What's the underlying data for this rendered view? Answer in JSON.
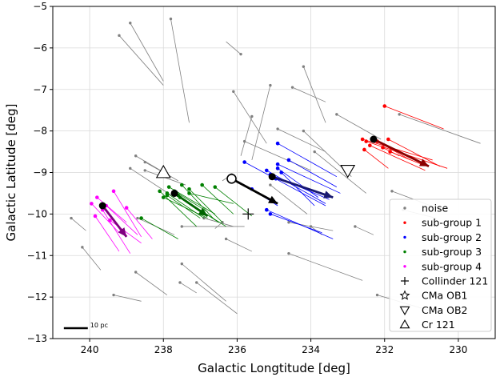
{
  "chart_data": {
    "type": "scatter",
    "xlabel": "Galactic Longtitude [deg]",
    "ylabel": "Galactic Latitude [deg]",
    "xlim": [
      241,
      229
    ],
    "ylim": [
      -13,
      -5
    ],
    "x_inverted": true,
    "grid": true,
    "x_ticks": [
      240,
      238,
      236,
      234,
      232,
      230
    ],
    "y_ticks": [
      -5,
      -6,
      -7,
      -8,
      -9,
      -10,
      -11,
      -12,
      -13
    ],
    "legend_position": "lower-right",
    "scale_bar": {
      "label": "10 pc",
      "x1": 240.7,
      "x2": 240.05,
      "y": -12.75
    },
    "colors": {
      "noise": "#808080",
      "sub-group 1": "#ff0000",
      "sub-group 2": "#0000ff",
      "sub-group 3": "#008000",
      "sub-group 4": "#ff00ff"
    },
    "series": [
      {
        "name": "noise",
        "color": "#808080",
        "stars": [
          [
            238.9,
            -5.4,
            238.0,
            -6.8
          ],
          [
            237.8,
            -5.3,
            237.3,
            -7.8
          ],
          [
            239.2,
            -5.7,
            238.0,
            -6.9
          ],
          [
            235.9,
            -6.15,
            236.3,
            -5.85
          ],
          [
            236.1,
            -7.05,
            235.2,
            -8.3
          ],
          [
            235.1,
            -6.9,
            235.6,
            -8.7
          ],
          [
            234.5,
            -6.95,
            233.6,
            -7.3
          ],
          [
            234.2,
            -6.45,
            233.6,
            -7.8
          ],
          [
            235.8,
            -8.25,
            234.0,
            -8.95
          ],
          [
            235.6,
            -7.65,
            235.9,
            -8.6
          ],
          [
            234.9,
            -7.95,
            233.6,
            -8.5
          ],
          [
            234.2,
            -8.0,
            232.9,
            -9.1
          ],
          [
            233.9,
            -8.5,
            232.5,
            -9.5
          ],
          [
            233.3,
            -7.6,
            232.1,
            -8.2
          ],
          [
            231.6,
            -7.6,
            229.4,
            -8.3
          ],
          [
            238.75,
            -8.6,
            237.6,
            -9.2
          ],
          [
            238.9,
            -8.9,
            237.7,
            -9.6
          ],
          [
            238.5,
            -8.75,
            237.8,
            -9.1
          ],
          [
            238.5,
            -8.95,
            237.4,
            -9.3
          ],
          [
            236.15,
            -9.05,
            236.4,
            -9.2
          ],
          [
            235.1,
            -9.3,
            234.1,
            -10.0
          ],
          [
            238.7,
            -10.1,
            237.7,
            -10.5
          ],
          [
            240.5,
            -10.1,
            240.1,
            -10.4
          ],
          [
            240.2,
            -10.8,
            239.7,
            -11.35
          ],
          [
            236.9,
            -10.1,
            236.1,
            -10.3
          ],
          [
            234.6,
            -10.2,
            233.4,
            -10.4
          ],
          [
            234.0,
            -10.3,
            233.7,
            -10.5
          ],
          [
            232.8,
            -10.3,
            232.3,
            -10.5
          ],
          [
            231.8,
            -9.45,
            230.3,
            -9.95
          ],
          [
            231.5,
            -9.9,
            230.6,
            -10.1
          ],
          [
            239.35,
            -11.95,
            238.6,
            -12.1
          ],
          [
            238.75,
            -11.4,
            237.9,
            -11.95
          ],
          [
            237.5,
            -11.2,
            236.3,
            -12.1
          ],
          [
            237.55,
            -11.65,
            237.1,
            -11.9
          ],
          [
            237.1,
            -11.65,
            236.0,
            -12.4
          ],
          [
            234.6,
            -10.95,
            232.6,
            -11.6
          ],
          [
            232.2,
            -11.95,
            230.5,
            -12.4
          ],
          [
            236.4,
            -10.2,
            236.6,
            -10.35
          ],
          [
            237.5,
            -10.3,
            235.8,
            -10.3
          ],
          [
            236.3,
            -10.6,
            235.6,
            -10.9
          ]
        ]
      },
      {
        "name": "sub-group 1",
        "color": "#ff0000",
        "stars": [
          [
            232.0,
            -7.4,
            230.4,
            -7.95
          ],
          [
            232.6,
            -8.2,
            230.7,
            -8.7
          ],
          [
            232.5,
            -8.25,
            230.3,
            -8.9
          ],
          [
            232.4,
            -8.35,
            230.9,
            -8.95
          ],
          [
            232.55,
            -8.45,
            231.9,
            -8.9
          ],
          [
            232.2,
            -8.25,
            231.3,
            -8.7
          ],
          [
            231.85,
            -8.5,
            231.0,
            -8.8
          ],
          [
            231.9,
            -8.2,
            230.5,
            -8.85
          ],
          [
            232.05,
            -8.4,
            231.6,
            -8.6
          ]
        ]
      },
      {
        "name": "sub-group 2",
        "color": "#0000ff",
        "stars": [
          [
            235.8,
            -8.75,
            233.6,
            -9.8
          ],
          [
            234.9,
            -8.3,
            233.3,
            -9.1
          ],
          [
            234.6,
            -8.7,
            233.3,
            -9.35
          ],
          [
            234.9,
            -8.8,
            233.2,
            -9.5
          ],
          [
            234.9,
            -8.9,
            233.8,
            -9.6
          ],
          [
            235.2,
            -8.95,
            233.6,
            -9.75
          ],
          [
            235.1,
            -9.05,
            233.5,
            -9.65
          ],
          [
            234.95,
            -9.15,
            233.4,
            -9.6
          ],
          [
            234.8,
            -9.0,
            233.9,
            -9.8
          ],
          [
            235.2,
            -9.9,
            233.4,
            -10.6
          ],
          [
            235.1,
            -10.0,
            233.7,
            -10.45
          ],
          [
            235.6,
            -9.4,
            234.9,
            -9.8
          ]
        ]
      },
      {
        "name": "sub-group 3",
        "color": "#008000",
        "stars": [
          [
            238.1,
            -9.45,
            237.1,
            -10.3
          ],
          [
            237.9,
            -9.5,
            236.9,
            -10.1
          ],
          [
            237.85,
            -9.35,
            236.6,
            -10.0
          ],
          [
            237.5,
            -9.3,
            236.6,
            -10.15
          ],
          [
            237.7,
            -9.45,
            236.8,
            -9.95
          ],
          [
            237.6,
            -9.55,
            236.5,
            -10.2
          ],
          [
            237.3,
            -9.4,
            236.4,
            -10.2
          ],
          [
            236.95,
            -9.3,
            236.1,
            -10.0
          ],
          [
            236.6,
            -9.35,
            235.6,
            -10.05
          ],
          [
            237.3,
            -9.5,
            236.1,
            -9.75
          ],
          [
            237.55,
            -9.6,
            236.3,
            -10.3
          ],
          [
            238.0,
            -9.6,
            236.8,
            -10.1
          ],
          [
            238.6,
            -10.1,
            237.6,
            -10.6
          ],
          [
            237.9,
            -9.55,
            237.0,
            -10.1
          ]
        ]
      },
      {
        "name": "sub-group 4",
        "color": "#ff00ff",
        "stars": [
          [
            239.95,
            -9.75,
            239.2,
            -10.45
          ],
          [
            239.8,
            -9.6,
            239.0,
            -10.2
          ],
          [
            239.55,
            -9.8,
            238.7,
            -10.5
          ],
          [
            239.35,
            -9.45,
            238.6,
            -10.55
          ],
          [
            239.0,
            -9.85,
            238.3,
            -10.6
          ],
          [
            239.85,
            -10.05,
            239.2,
            -10.9
          ],
          [
            239.65,
            -9.9,
            238.9,
            -10.95
          ],
          [
            239.45,
            -10.15,
            238.6,
            -10.7
          ]
        ]
      }
    ],
    "group_means": [
      {
        "name": "sub-group 1",
        "x": 232.3,
        "y": -8.2,
        "x2": 230.8,
        "y2": -8.85,
        "arrow_color": "#8b0000"
      },
      {
        "name": "sub-group 2",
        "x": 235.05,
        "y": -9.1,
        "x2": 233.4,
        "y2": -9.6,
        "arrow_color": "#191970"
      },
      {
        "name": "sub-group 3",
        "x": 237.7,
        "y": -9.5,
        "x2": 236.8,
        "y2": -10.05,
        "arrow_color": "#006400"
      },
      {
        "name": "sub-group 4",
        "x": 239.65,
        "y": -9.8,
        "x2": 239.0,
        "y2": -10.55,
        "arrow_color": "#800080"
      },
      {
        "name": "cluster",
        "x": 236.15,
        "y": -9.15,
        "x2": 234.9,
        "y2": -9.75,
        "arrow_color": "#000000",
        "open": true
      }
    ],
    "markers": [
      {
        "name": "Collinder 121",
        "symbol": "plus",
        "x": 235.7,
        "y": -10.0
      },
      {
        "name": "CMa OB1",
        "symbol": "star",
        "x": null,
        "y": null
      },
      {
        "name": "CMa OB2",
        "symbol": "triangle-down",
        "x": 233.0,
        "y": -8.95
      },
      {
        "name": "Cr 121",
        "symbol": "triangle-up",
        "x": 238.0,
        "y": -9.0
      }
    ],
    "legend": [
      "noise",
      "sub-group 1",
      "sub-group 2",
      "sub-group 3",
      "sub-group 4",
      "Collinder 121",
      "CMa OB1",
      "CMa OB2",
      "Cr 121"
    ]
  }
}
